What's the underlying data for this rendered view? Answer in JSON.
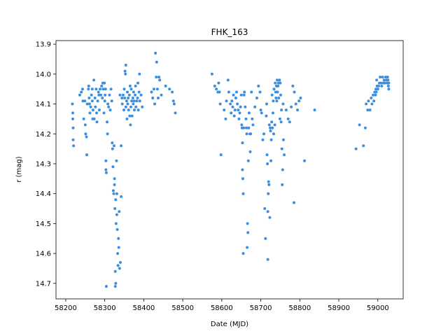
{
  "chart_data": {
    "type": "scatter",
    "title": "FHK_163",
    "xlabel": "Date (MJD)",
    "ylabel": "r (mag)",
    "xlim": [
      58175,
      59065
    ],
    "ylim": [
      14.752,
      13.888
    ],
    "y_inverted": true,
    "grid": false,
    "marker_color": "#3b8ee0",
    "xticks": [
      58200,
      58300,
      58400,
      58500,
      58600,
      58700,
      58800,
      58900,
      59000
    ],
    "yticks": [
      13.9,
      14.0,
      14.1,
      14.2,
      14.3,
      14.4,
      14.5,
      14.6,
      14.7
    ],
    "x_tick_labels": [
      "58200",
      "58300",
      "58400",
      "58500",
      "58600",
      "58700",
      "58800",
      "58900",
      "59000"
    ],
    "y_tick_labels": [
      "13.9",
      "14.0",
      "14.1",
      "14.2",
      "14.3",
      "14.4",
      "14.5",
      "14.6",
      "14.7"
    ],
    "series": [
      {
        "points": [
          [
            58217,
            14.1
          ],
          [
            58218,
            14.13
          ],
          [
            58218,
            14.15
          ],
          [
            58219,
            14.18
          ],
          [
            58219,
            14.22
          ],
          [
            58220,
            14.24
          ],
          [
            58236,
            14.07
          ],
          [
            58240,
            14.06
          ],
          [
            58243,
            14.05
          ],
          [
            58244,
            14.09
          ],
          [
            58246,
            14.15
          ],
          [
            58249,
            14.09
          ],
          [
            58250,
            14.17
          ],
          [
            58251,
            14.2
          ],
          [
            58253,
            14.21
          ],
          [
            58254,
            14.27
          ],
          [
            58255,
            14.1
          ],
          [
            58258,
            14.05
          ],
          [
            58259,
            14.04
          ],
          [
            58260,
            14.08
          ],
          [
            58261,
            14.1
          ],
          [
            58262,
            14.13
          ],
          [
            58264,
            14.11
          ],
          [
            58266,
            14.07
          ],
          [
            58268,
            14.05
          ],
          [
            58268,
            14.09
          ],
          [
            58269,
            14.15
          ],
          [
            58270,
            14.12
          ],
          [
            58272,
            14.02
          ],
          [
            58273,
            14.15
          ],
          [
            58275,
            14.08
          ],
          [
            58276,
            14.11
          ],
          [
            58278,
            14.05
          ],
          [
            58279,
            14.13
          ],
          [
            58280,
            14.16
          ],
          [
            58282,
            14.09
          ],
          [
            58284,
            14.06
          ],
          [
            58285,
            14.07
          ],
          [
            58286,
            14.12
          ],
          [
            58288,
            14.05
          ],
          [
            58290,
            14.07
          ],
          [
            58292,
            14.04
          ],
          [
            58294,
            14.08
          ],
          [
            58295,
            14.03
          ],
          [
            58296,
            14.05
          ],
          [
            58298,
            14.13
          ],
          [
            58299,
            14.03
          ],
          [
            58300,
            14.09
          ],
          [
            58301,
            14.07
          ],
          [
            58302,
            14.05
          ],
          [
            58303,
            14.29
          ],
          [
            58303,
            14.32
          ],
          [
            58304,
            14.33
          ],
          [
            58304,
            14.71
          ],
          [
            58306,
            14.16
          ],
          [
            58307,
            14.2
          ],
          [
            58308,
            14.1
          ],
          [
            58310,
            14.11
          ],
          [
            58312,
            14.07
          ],
          [
            58314,
            14.12
          ],
          [
            58316,
            14.05
          ],
          [
            58318,
            14.09
          ],
          [
            58319,
            14.23
          ],
          [
            58320,
            14.25
          ],
          [
            58321,
            14.31
          ],
          [
            58322,
            14.39
          ],
          [
            58323,
            14.4
          ],
          [
            58324,
            14.24
          ],
          [
            58325,
            14.35
          ],
          [
            58325,
            14.37
          ],
          [
            58326,
            14.45
          ],
          [
            58327,
            14.66
          ],
          [
            58327,
            14.71
          ],
          [
            58328,
            14.7
          ],
          [
            58328,
            14.42
          ],
          [
            58329,
            14.5
          ],
          [
            58330,
            14.29
          ],
          [
            58331,
            14.4
          ],
          [
            58331,
            14.47
          ],
          [
            58332,
            14.52
          ],
          [
            58333,
            14.6
          ],
          [
            58334,
            14.64
          ],
          [
            58335,
            14.55
          ],
          [
            58336,
            14.58
          ],
          [
            58337,
            14.46
          ],
          [
            58338,
            14.65
          ],
          [
            58339,
            14.07
          ],
          [
            58340,
            14.63
          ],
          [
            58342,
            14.41
          ],
          [
            58342,
            14.24
          ],
          [
            58344,
            14.08
          ],
          [
            58345,
            14.1
          ],
          [
            58347,
            14.07
          ],
          [
            58349,
            14.12
          ],
          [
            58350,
            14.05
          ],
          [
            58351,
            14.08
          ],
          [
            58352,
            13.99
          ],
          [
            58353,
            14.0
          ],
          [
            58354,
            13.97
          ],
          [
            58354,
            14.11
          ],
          [
            58356,
            14.09
          ],
          [
            58357,
            14.15
          ],
          [
            58358,
            14.06
          ],
          [
            58359,
            14.1
          ],
          [
            58360,
            14.08
          ],
          [
            58361,
            14.12
          ],
          [
            58363,
            14.07
          ],
          [
            58364,
            14.14
          ],
          [
            58365,
            14.04
          ],
          [
            58366,
            14.17
          ],
          [
            58367,
            14.11
          ],
          [
            58368,
            14.05
          ],
          [
            58369,
            14.09
          ],
          [
            58370,
            14.14
          ],
          [
            58372,
            14.08
          ],
          [
            58373,
            14.1
          ],
          [
            58374,
            14.06
          ],
          [
            58375,
            14.09
          ],
          [
            58376,
            14.12
          ],
          [
            58378,
            14.07
          ],
          [
            58379,
            14.04
          ],
          [
            58380,
            14.11
          ],
          [
            58382,
            14.09
          ],
          [
            58384,
            14.08
          ],
          [
            58385,
            14.03
          ],
          [
            58386,
            14.12
          ],
          [
            58388,
            14.06
          ],
          [
            58389,
            14.0
          ],
          [
            58390,
            14.09
          ],
          [
            58393,
            14.07
          ],
          [
            58396,
            14.11
          ],
          [
            58420,
            14.06
          ],
          [
            58423,
            14.08
          ],
          [
            58426,
            14.05
          ],
          [
            58428,
            14.1
          ],
          [
            58430,
            13.93
          ],
          [
            58432,
            14.01
          ],
          [
            58433,
            13.96
          ],
          [
            58435,
            14.05
          ],
          [
            58437,
            14.08
          ],
          [
            58439,
            14.01
          ],
          [
            58441,
            14.02
          ],
          [
            58445,
            14.07
          ],
          [
            58456,
            14.04
          ],
          [
            58466,
            14.05
          ],
          [
            58473,
            14.06
          ],
          [
            58476,
            14.09
          ],
          [
            58478,
            14.1
          ],
          [
            58481,
            14.13
          ],
          [
            58575,
            14.0
          ],
          [
            58582,
            14.04
          ],
          [
            58586,
            14.05
          ],
          [
            58590,
            14.06
          ],
          [
            58592,
            14.03
          ],
          [
            58594,
            14.06
          ],
          [
            58596,
            14.1
          ],
          [
            58598,
            14.27
          ],
          [
            58606,
            14.12
          ],
          [
            58610,
            14.15
          ],
          [
            58612,
            14.09
          ],
          [
            58616,
            14.02
          ],
          [
            58618,
            14.06
          ],
          [
            58622,
            14.1
          ],
          [
            58624,
            14.13
          ],
          [
            58626,
            14.09
          ],
          [
            58628,
            14.11
          ],
          [
            58630,
            14.07
          ],
          [
            58632,
            14.14
          ],
          [
            58634,
            14.12
          ],
          [
            58636,
            14.08
          ],
          [
            58638,
            14.06
          ],
          [
            58640,
            14.1
          ],
          [
            58642,
            14.12
          ],
          [
            58644,
            14.15
          ],
          [
            58646,
            14.13
          ],
          [
            58648,
            14.11
          ],
          [
            58650,
            14.07
          ],
          [
            58651,
            14.17
          ],
          [
            58652,
            14.18
          ],
          [
            58653,
            14.23
          ],
          [
            58653,
            14.32
          ],
          [
            58654,
            14.35
          ],
          [
            58655,
            14.4
          ],
          [
            58655,
            14.6
          ],
          [
            58656,
            14.18
          ],
          [
            58657,
            14.07
          ],
          [
            58658,
            14.06
          ],
          [
            58660,
            14.11
          ],
          [
            58662,
            14.15
          ],
          [
            58663,
            14.18
          ],
          [
            58664,
            14.2
          ],
          [
            58665,
            14.58
          ],
          [
            58666,
            14.5
          ],
          [
            58667,
            14.53
          ],
          [
            58668,
            14.29
          ],
          [
            58669,
            14.18
          ],
          [
            58670,
            14.13
          ],
          [
            58672,
            14.2
          ],
          [
            58673,
            14.26
          ],
          [
            58674,
            14.2
          ],
          [
            58676,
            14.06
          ],
          [
            58678,
            14.15
          ],
          [
            58680,
            14.17
          ],
          [
            58685,
            14.11
          ],
          [
            58690,
            14.08
          ],
          [
            58694,
            14.04
          ],
          [
            58698,
            14.06
          ],
          [
            58700,
            14.12
          ],
          [
            58702,
            14.13
          ],
          [
            58705,
            14.22
          ],
          [
            58708,
            14.2
          ],
          [
            58710,
            14.45
          ],
          [
            58712,
            14.55
          ],
          [
            58714,
            14.14
          ],
          [
            58715,
            14.1
          ],
          [
            58716,
            14.27
          ],
          [
            58717,
            14.3
          ],
          [
            58718,
            14.46
          ],
          [
            58718,
            14.62
          ],
          [
            58719,
            14.4
          ],
          [
            58720,
            14.36
          ],
          [
            58721,
            14.37
          ],
          [
            58722,
            14.17
          ],
          [
            58723,
            14.48
          ],
          [
            58724,
            14.18
          ],
          [
            58725,
            14.19
          ],
          [
            58726,
            14.29
          ],
          [
            58727,
            14.22
          ],
          [
            58728,
            14.16
          ],
          [
            58729,
            14.07
          ],
          [
            58730,
            14.18
          ],
          [
            58731,
            14.13
          ],
          [
            58732,
            14.09
          ],
          [
            58733,
            14.2
          ],
          [
            58734,
            14.05
          ],
          [
            58736,
            14.17
          ],
          [
            58737,
            14.03
          ],
          [
            58738,
            14.06
          ],
          [
            58739,
            14.08
          ],
          [
            58740,
            14.04
          ],
          [
            58741,
            14.09
          ],
          [
            58742,
            14.02
          ],
          [
            58743,
            14.06
          ],
          [
            58744,
            14.04
          ],
          [
            58745,
            14.03
          ],
          [
            58746,
            14.08
          ],
          [
            58748,
            14.02
          ],
          [
            58749,
            14.15
          ],
          [
            58750,
            14.03
          ],
          [
            58751,
            14.07
          ],
          [
            58752,
            14.16
          ],
          [
            58753,
            14.12
          ],
          [
            58754,
            14.25
          ],
          [
            58755,
            14.37
          ],
          [
            58756,
            14.32
          ],
          [
            58757,
            14.1
          ],
          [
            58758,
            14.22
          ],
          [
            58760,
            14.27
          ],
          [
            58765,
            14.12
          ],
          [
            58770,
            14.15
          ],
          [
            58774,
            14.16
          ],
          [
            58778,
            14.11
          ],
          [
            58782,
            14.04
          ],
          [
            58785,
            14.43
          ],
          [
            58786,
            14.06
          ],
          [
            58790,
            14.1
          ],
          [
            58794,
            14.12
          ],
          [
            58798,
            14.09
          ],
          [
            58802,
            14.08
          ],
          [
            58812,
            14.29
          ],
          [
            58838,
            14.12
          ],
          [
            58944,
            14.25
          ],
          [
            58953,
            14.17
          ],
          [
            58963,
            14.24
          ],
          [
            58968,
            14.18
          ],
          [
            58970,
            14.1
          ],
          [
            58974,
            14.12
          ],
          [
            58976,
            14.09
          ],
          [
            58980,
            14.12
          ],
          [
            58983,
            14.08
          ],
          [
            58985,
            14.1
          ],
          [
            58988,
            14.07
          ],
          [
            58990,
            14.09
          ],
          [
            58992,
            14.06
          ],
          [
            58994,
            14.07
          ],
          [
            58995,
            14.05
          ],
          [
            58996,
            14.06
          ],
          [
            58997,
            14.02
          ],
          [
            58998,
            14.04
          ],
          [
            59000,
            14.05
          ],
          [
            59002,
            14.04
          ],
          [
            59004,
            14.03
          ],
          [
            59006,
            14.01
          ],
          [
            59008,
            14.03
          ],
          [
            59010,
            14.04
          ],
          [
            59012,
            14.01
          ],
          [
            59014,
            14.03
          ],
          [
            59016,
            14.02
          ],
          [
            59018,
            14.03
          ],
          [
            59020,
            14.01
          ],
          [
            59022,
            14.02
          ],
          [
            59024,
            14.03
          ],
          [
            59025,
            14.01
          ],
          [
            59026,
            14.02
          ],
          [
            59027,
            14.04
          ],
          [
            59028,
            14.03
          ],
          [
            59028,
            14.05
          ]
        ]
      }
    ]
  }
}
